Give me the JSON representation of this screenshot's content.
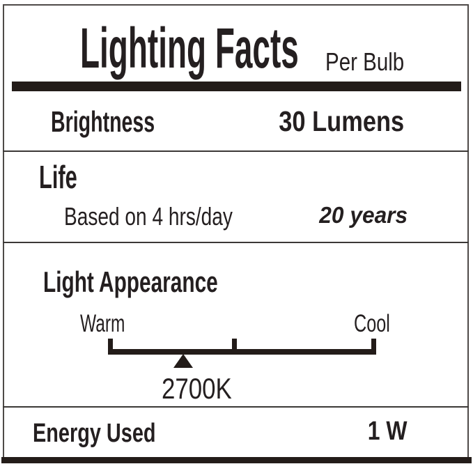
{
  "label": {
    "title": "Lighting Facts",
    "subtitle": "Per Bulb",
    "brightness": {
      "label": "Brightness",
      "value": "30 Lumens"
    },
    "life": {
      "label": "Life",
      "note": "Based on 4 hrs/day",
      "value": "20 years"
    },
    "light_appearance": {
      "label": "Light Appearance",
      "warm": "Warm",
      "cool": "Cool",
      "marker_value": "2700K",
      "marker_position_percent": 28
    },
    "energy": {
      "label": "Energy Used",
      "value": "1 W"
    },
    "colors": {
      "ink": "#241f20",
      "bar": "#231c19"
    }
  }
}
